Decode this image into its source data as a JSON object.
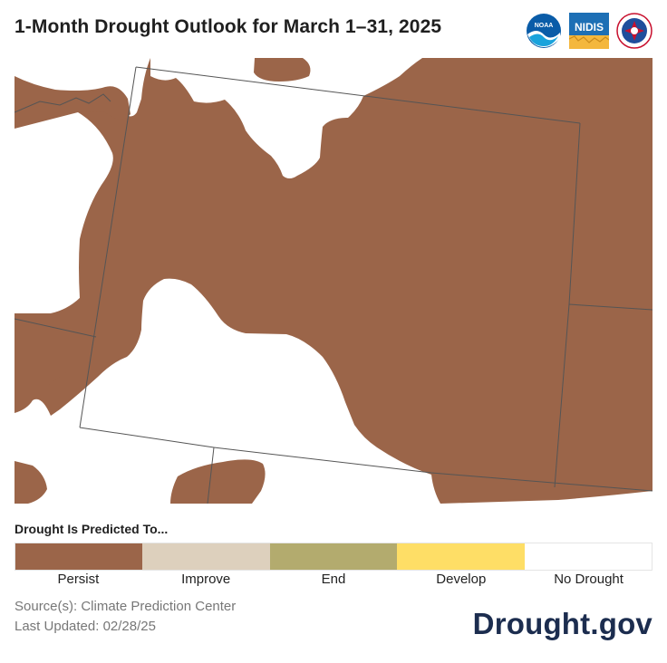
{
  "header": {
    "title": "1-Month Drought Outlook for March 1–31, 2025",
    "logos": {
      "noaa_text": "NOAA",
      "nidis_text": "NIDIS",
      "nws_icon": "nws-seal-icon"
    }
  },
  "map": {
    "colors": {
      "persist": "#9b6549",
      "background": "#ffffff",
      "border": "#555555"
    }
  },
  "legend": {
    "title": "Drought Is Predicted To...",
    "items": [
      {
        "label": "Persist",
        "color": "#9b6549"
      },
      {
        "label": "Improve",
        "color": "#ddd0bd"
      },
      {
        "label": "End",
        "color": "#b3ab6e"
      },
      {
        "label": "Develop",
        "color": "#fede66"
      },
      {
        "label": "No Drought",
        "color": "#ffffff"
      }
    ]
  },
  "footer": {
    "source": "Source(s): Climate Prediction Center",
    "updated": "Last Updated: 02/28/25",
    "brand": "Drought.gov"
  }
}
